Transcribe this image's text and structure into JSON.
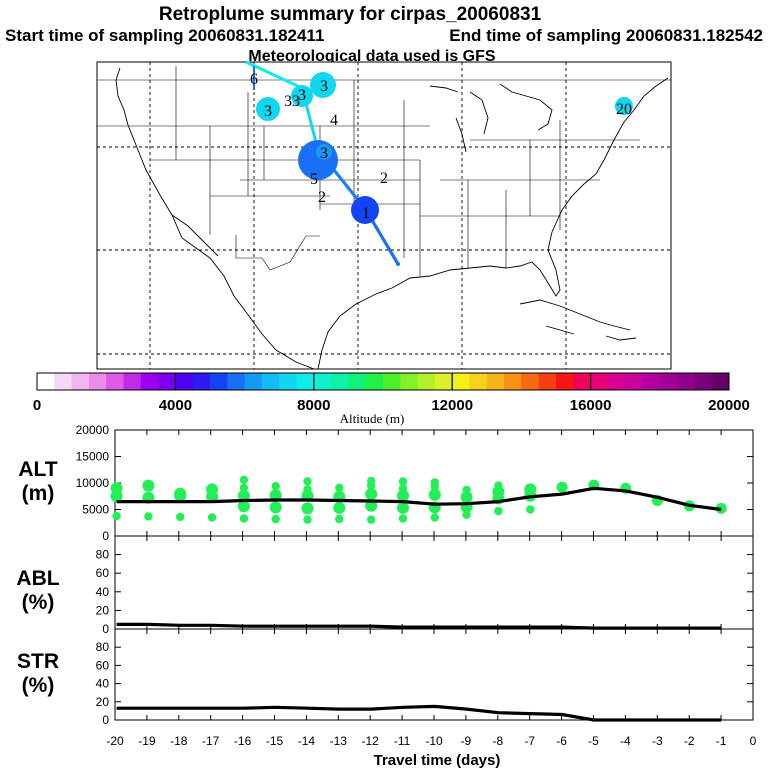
{
  "header": {
    "title": "Retroplume summary for cirpas_20060831",
    "start_label": "Start time of sampling 20060831.182411",
    "end_label": "End time of sampling 20060831.182542",
    "met_label": "Meteorological data used is GFS"
  },
  "map": {
    "day_labels": [
      "6",
      "3",
      "33",
      "3",
      "3",
      "4",
      "3",
      "5",
      "2",
      "2",
      "1",
      "20"
    ]
  },
  "colorbar": {
    "ticks": [
      "0",
      "4000",
      "8000",
      "12000",
      "16000",
      "20000"
    ],
    "label": "Altitude (m)",
    "colors": [
      "#ffffff",
      "#f6d8f6",
      "#f0b6f0",
      "#ea8cea",
      "#dd5be6",
      "#c12be6",
      "#9b00ee",
      "#7a00ee",
      "#4f00f2",
      "#2b1cf2",
      "#1344f5",
      "#1a70f5",
      "#1898f5",
      "#10bdf5",
      "#12d6f0",
      "#10ecec",
      "#10f0cc",
      "#10f0a8",
      "#10f07a",
      "#22f048",
      "#4cf02a",
      "#82f02a",
      "#b4f02a",
      "#dcf02a",
      "#f6f01a",
      "#f6d21a",
      "#f6b41a",
      "#f69214",
      "#f66a14",
      "#f63e14",
      "#f61414",
      "#f0005a",
      "#e6007a",
      "#d80092",
      "#c800a0",
      "#b400a0",
      "#a00096",
      "#8c008a",
      "#780078",
      "#640064"
    ]
  },
  "panels": {
    "alt": {
      "label": "ALT",
      "unit": "(m)",
      "yticks": [
        "20000",
        "15000",
        "10000",
        "5000",
        "0"
      ]
    },
    "abl": {
      "label": "ABL",
      "unit": "(%)",
      "yticks": [
        "80",
        "60",
        "40",
        "20",
        "0"
      ]
    },
    "str": {
      "label": "STR",
      "unit": "(%)",
      "yticks": [
        "80",
        "60",
        "40",
        "20",
        "0"
      ]
    }
  },
  "xaxis": {
    "ticks": [
      "-20",
      "-19",
      "-18",
      "-17",
      "-16",
      "-15",
      "-14",
      "-13",
      "-12",
      "-11",
      "-10",
      "-9",
      "-8",
      "-7",
      "-6",
      "-5",
      "-4",
      "-3",
      "-2",
      "-1",
      "0"
    ],
    "label": "Travel time (days)"
  },
  "chart_data": {
    "type": "line",
    "x": [
      -20,
      -19,
      -18,
      -17,
      -16,
      -15,
      -14,
      -13,
      -12,
      -11,
      -10,
      -9,
      -8,
      -7,
      -6,
      -5,
      -4,
      -3,
      -2,
      -1
    ],
    "xlabel": "Travel time (days)",
    "xlim": [
      -20,
      0
    ],
    "series": [
      {
        "name": "ALT",
        "ylabel": "ALT (m)",
        "ylim": [
          0,
          20000
        ],
        "values": [
          6500,
          6500,
          6500,
          6500,
          6700,
          6800,
          6800,
          6700,
          6600,
          6500,
          6000,
          6100,
          6500,
          7400,
          7900,
          9000,
          8500,
          7300,
          5800,
          5000
        ]
      },
      {
        "name": "ABL",
        "ylabel": "ABL (%)",
        "ylim": [
          0,
          100
        ],
        "values": [
          5,
          5,
          4,
          4,
          3,
          3,
          3,
          3,
          3,
          2,
          2,
          2,
          2,
          2,
          2,
          1,
          1,
          1,
          1,
          1
        ]
      },
      {
        "name": "STR",
        "ylabel": "STR (%)",
        "ylim": [
          0,
          100
        ],
        "values": [
          13,
          13,
          13,
          13,
          13,
          14,
          13,
          12,
          12,
          14,
          15,
          12,
          8,
          7,
          6,
          0,
          0,
          0,
          0,
          0
        ]
      }
    ],
    "alt_particle_distribution": [
      {
        "day": -20,
        "altitudes": [
          3800,
          7500,
          9000
        ]
      },
      {
        "day": -19,
        "altitudes": [
          3700,
          7200,
          9500
        ]
      },
      {
        "day": -18,
        "altitudes": [
          3600,
          7600,
          8000
        ]
      },
      {
        "day": -17,
        "altitudes": [
          3500,
          7400,
          8800
        ]
      },
      {
        "day": -16,
        "altitudes": [
          3300,
          5600,
          7600,
          9100,
          10600
        ]
      },
      {
        "day": -15,
        "altitudes": [
          3200,
          5400,
          7700,
          9400
        ]
      },
      {
        "day": -14,
        "altitudes": [
          3100,
          5200,
          7600,
          8800,
          10300
        ]
      },
      {
        "day": -13,
        "altitudes": [
          3200,
          5300,
          7400,
          9100
        ]
      },
      {
        "day": -12,
        "altitudes": [
          3100,
          5700,
          7900,
          9500,
          10400
        ]
      },
      {
        "day": -11,
        "altitudes": [
          3300,
          5300,
          7600,
          9000,
          10300
        ]
      },
      {
        "day": -10,
        "altitudes": [
          3500,
          5400,
          7800,
          9300,
          10100
        ]
      },
      {
        "day": -9,
        "altitudes": [
          4000,
          5500,
          7300,
          8700
        ]
      },
      {
        "day": -8,
        "altitudes": [
          4700,
          7100,
          8300,
          9500
        ]
      },
      {
        "day": -7,
        "altitudes": [
          5000,
          7600,
          8800
        ]
      },
      {
        "day": -6,
        "altitudes": [
          9200
        ]
      },
      {
        "day": -5,
        "altitudes": [
          9600
        ]
      },
      {
        "day": -4,
        "altitudes": [
          9000
        ]
      },
      {
        "day": -3,
        "altitudes": [
          6700
        ]
      },
      {
        "day": -2,
        "altitudes": [
          5700
        ]
      },
      {
        "day": -1,
        "altitudes": [
          5200
        ]
      }
    ]
  }
}
